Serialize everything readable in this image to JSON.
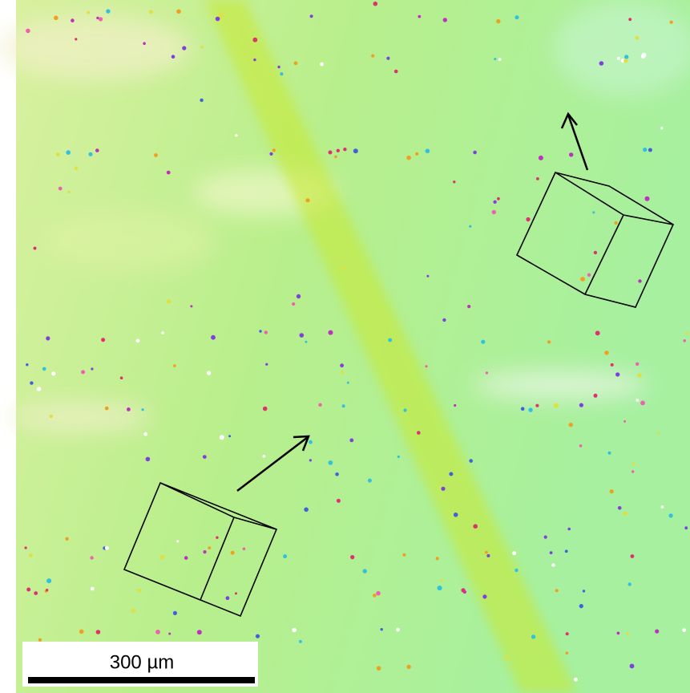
{
  "scale_bar": {
    "label": "300 µm"
  }
}
